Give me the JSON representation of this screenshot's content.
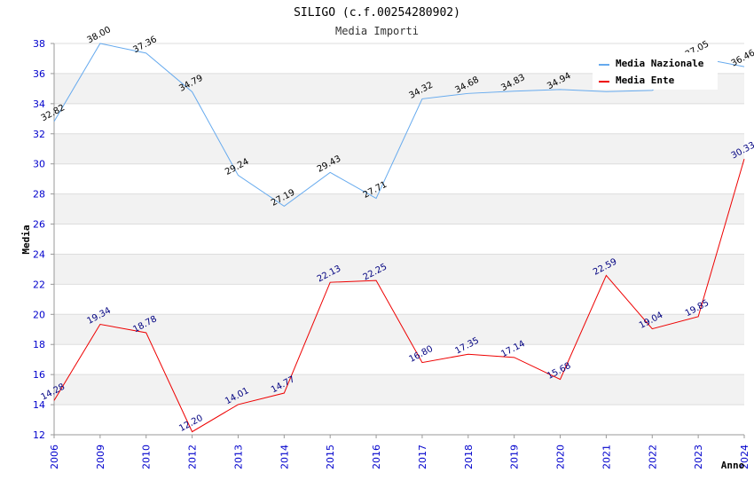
{
  "chart_data": {
    "type": "line",
    "title": "SILIGO (c.f.00254280902)",
    "subtitle": "Media Importi",
    "xlabel": "Anno",
    "ylabel": "Media",
    "ylim": [
      12,
      38
    ],
    "yticks": [
      12,
      14,
      16,
      18,
      20,
      22,
      24,
      26,
      28,
      30,
      32,
      34,
      36,
      38
    ],
    "categories": [
      "2006",
      "2009",
      "2010",
      "2012",
      "2013",
      "2014",
      "2015",
      "2016",
      "2017",
      "2018",
      "2019",
      "2020",
      "2021",
      "2022",
      "2023",
      "2024"
    ],
    "grid": true,
    "legend_position": "top-right",
    "series": [
      {
        "name": "Media Nazionale",
        "color": "#66aaee",
        "values": [
          32.82,
          38.0,
          37.36,
          34.79,
          29.24,
          27.19,
          29.43,
          27.71,
          34.32,
          34.68,
          34.83,
          34.94,
          34.8,
          34.88,
          37.05,
          36.46
        ],
        "labels": [
          "32.82",
          "38.00",
          "37.36",
          "34.79",
          "29.24",
          "27.19",
          "29.43",
          "27.71",
          "34.32",
          "34.68",
          "34.83",
          "34.94",
          "",
          "",
          "37.05",
          "36.46"
        ]
      },
      {
        "name": "Media Ente",
        "color": "#ee0000",
        "values": [
          14.28,
          19.34,
          18.78,
          12.2,
          14.01,
          14.77,
          22.13,
          22.25,
          16.8,
          17.35,
          17.14,
          15.68,
          22.59,
          19.04,
          19.85,
          30.33
        ],
        "labels": [
          "14.28",
          "19.34",
          "18.78",
          "12.20",
          "14.01",
          "14.77",
          "22.13",
          "22.25",
          "16.80",
          "17.35",
          "17.14",
          "15.68",
          "22.59",
          "19.04",
          "19.85",
          "30.33"
        ]
      }
    ]
  }
}
